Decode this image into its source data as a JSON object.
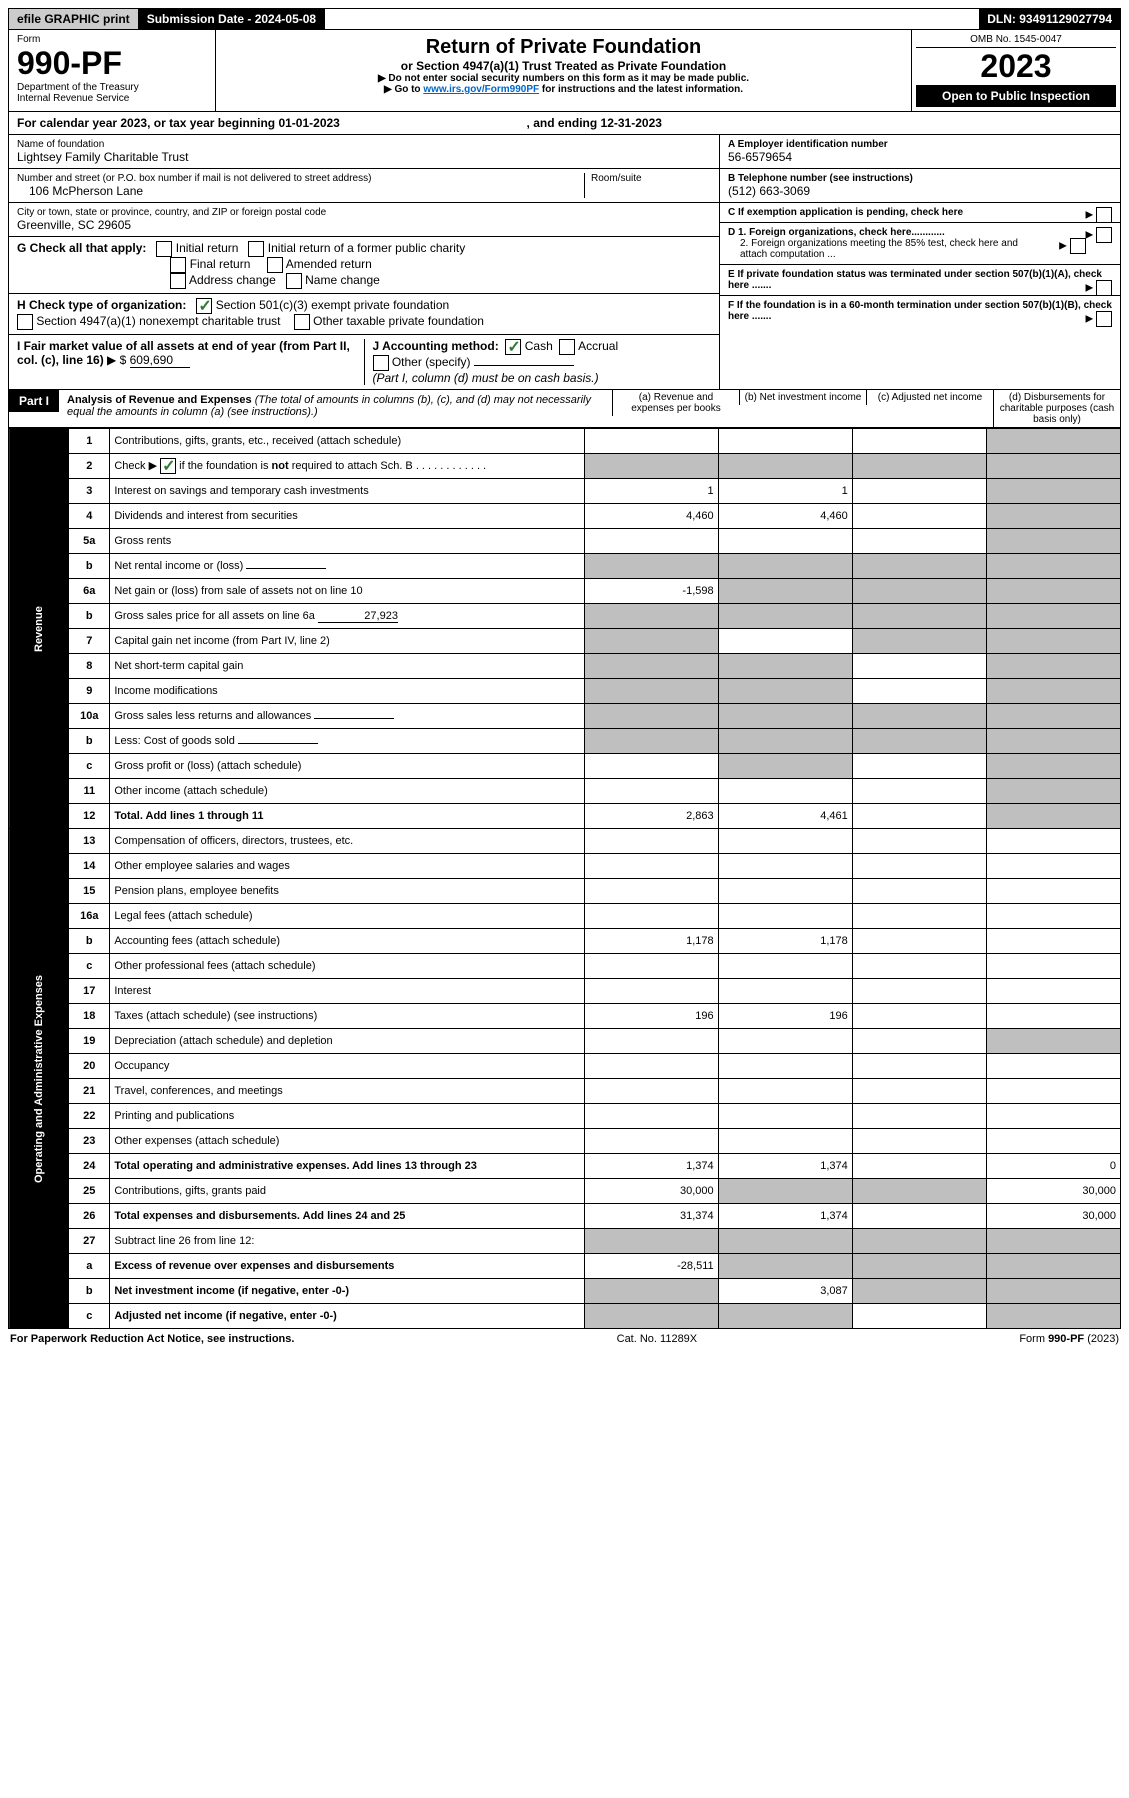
{
  "top": {
    "efile": "efile GRAPHIC print",
    "submission": "Submission Date - 2024-05-08",
    "dln": "DLN: 93491129027794"
  },
  "header": {
    "form_word": "Form",
    "form_no": "990-PF",
    "dept": "Department of the Treasury",
    "irs": "Internal Revenue Service",
    "title": "Return of Private Foundation",
    "subtitle": "or Section 4947(a)(1) Trust Treated as Private Foundation",
    "warn": "Do not enter social security numbers on this form as it may be made public.",
    "goto_pre": "Go to ",
    "goto_link": "www.irs.gov/Form990PF",
    "goto_post": " for instructions and the latest information.",
    "omb": "OMB No. 1545-0047",
    "year": "2023",
    "open": "Open to Public Inspection"
  },
  "calendar": {
    "text_pre": "For calendar year 2023, or tax year beginning ",
    "begin": "01-01-2023",
    "mid": " , and ending ",
    "end": "12-31-2023"
  },
  "entity": {
    "name_label": "Name of foundation",
    "name": "Lightsey Family Charitable Trust",
    "addr_label": "Number and street (or P.O. box number if mail is not delivered to street address)",
    "addr": "106 McPherson Lane",
    "room_label": "Room/suite",
    "city_label": "City or town, state or province, country, and ZIP or foreign postal code",
    "city": "Greenville, SC  29605"
  },
  "right": {
    "a_label": "A Employer identification number",
    "a_val": "56-6579654",
    "b_label": "B Telephone number (see instructions)",
    "b_val": "(512) 663-3069",
    "c_label": "C If exemption application is pending, check here",
    "d1": "D 1. Foreign organizations, check here............",
    "d2": "2. Foreign organizations meeting the 85% test, check here and attach computation ...",
    "e": "E  If private foundation status was terminated under section 507(b)(1)(A), check here .......",
    "f": "F  If the foundation is in a 60-month termination under section 507(b)(1)(B), check here ......."
  },
  "g": {
    "label": "G Check all that apply:",
    "initial": "Initial return",
    "initial_former": "Initial return of a former public charity",
    "final": "Final return",
    "amended": "Amended return",
    "address": "Address change",
    "name_change": "Name change"
  },
  "h": {
    "label": "H Check type of organization:",
    "501c3": "Section 501(c)(3) exempt private foundation",
    "4947": "Section 4947(a)(1) nonexempt charitable trust",
    "other_taxable": "Other taxable private foundation"
  },
  "i": {
    "label": "I Fair market value of all assets at end of year (from Part II, col. (c), line 16)",
    "val": "609,690"
  },
  "j": {
    "label": "J Accounting method:",
    "cash": "Cash",
    "accrual": "Accrual",
    "other": "Other (specify)",
    "note": "(Part I, column (d) must be on cash basis.)"
  },
  "part1": {
    "label": "Part I",
    "title": "Analysis of Revenue and Expenses",
    "note": "(The total of amounts in columns (b), (c), and (d) may not necessarily equal the amounts in column (a) (see instructions).)",
    "col_a": "(a)   Revenue and expenses per books",
    "col_b": "(b)   Net investment income",
    "col_c": "(c)   Adjusted net income",
    "col_d": "(d)   Disbursements for charitable purposes (cash basis only)"
  },
  "vlabels": {
    "revenue": "Revenue",
    "expenses": "Operating and Administrative Expenses"
  },
  "rows": [
    {
      "n": "1",
      "d": "Contributions, gifts, grants, etc., received (attach schedule)",
      "a": "",
      "b": "",
      "c": "",
      "dd": "",
      "shade": [
        "dd"
      ]
    },
    {
      "n": "2",
      "d": "Check ▶ ☑ if the foundation is not required to attach Sch. B",
      "a": "",
      "b": "",
      "c": "",
      "dd": "",
      "shade": [
        "a",
        "b",
        "c",
        "dd"
      ],
      "check": true
    },
    {
      "n": "3",
      "d": "Interest on savings and temporary cash investments",
      "a": "1",
      "b": "1",
      "c": "",
      "dd": "",
      "shade": [
        "dd"
      ]
    },
    {
      "n": "4",
      "d": "Dividends and interest from securities",
      "a": "4,460",
      "b": "4,460",
      "c": "",
      "dd": "",
      "shade": [
        "dd"
      ]
    },
    {
      "n": "5a",
      "d": "Gross rents",
      "a": "",
      "b": "",
      "c": "",
      "dd": "",
      "shade": [
        "dd"
      ]
    },
    {
      "n": "b",
      "d": "Net rental income or (loss)",
      "a": "",
      "b": "",
      "c": "",
      "dd": "",
      "shade": [
        "a",
        "b",
        "c",
        "dd"
      ],
      "inline": true
    },
    {
      "n": "6a",
      "d": "Net gain or (loss) from sale of assets not on line 10",
      "a": "-1,598",
      "b": "",
      "c": "",
      "dd": "",
      "shade": [
        "b",
        "c",
        "dd"
      ]
    },
    {
      "n": "b",
      "d": "Gross sales price for all assets on line 6a",
      "a": "",
      "b": "",
      "c": "",
      "dd": "",
      "shade": [
        "a",
        "b",
        "c",
        "dd"
      ],
      "inline": true,
      "inline_val": "27,923"
    },
    {
      "n": "7",
      "d": "Capital gain net income (from Part IV, line 2)",
      "a": "",
      "b": "",
      "c": "",
      "dd": "",
      "shade": [
        "a",
        "c",
        "dd"
      ]
    },
    {
      "n": "8",
      "d": "Net short-term capital gain",
      "a": "",
      "b": "",
      "c": "",
      "dd": "",
      "shade": [
        "a",
        "b",
        "dd"
      ]
    },
    {
      "n": "9",
      "d": "Income modifications",
      "a": "",
      "b": "",
      "c": "",
      "dd": "",
      "shade": [
        "a",
        "b",
        "dd"
      ]
    },
    {
      "n": "10a",
      "d": "Gross sales less returns and allowances",
      "a": "",
      "b": "",
      "c": "",
      "dd": "",
      "shade": [
        "a",
        "b",
        "c",
        "dd"
      ],
      "inline": true
    },
    {
      "n": "b",
      "d": "Less: Cost of goods sold",
      "a": "",
      "b": "",
      "c": "",
      "dd": "",
      "shade": [
        "a",
        "b",
        "c",
        "dd"
      ],
      "inline": true
    },
    {
      "n": "c",
      "d": "Gross profit or (loss) (attach schedule)",
      "a": "",
      "b": "",
      "c": "",
      "dd": "",
      "shade": [
        "b",
        "dd"
      ]
    },
    {
      "n": "11",
      "d": "Other income (attach schedule)",
      "a": "",
      "b": "",
      "c": "",
      "dd": "",
      "shade": [
        "dd"
      ]
    },
    {
      "n": "12",
      "d": "Total. Add lines 1 through 11",
      "a": "2,863",
      "b": "4,461",
      "c": "",
      "dd": "",
      "shade": [
        "dd"
      ],
      "bold": true
    },
    {
      "n": "13",
      "d": "Compensation of officers, directors, trustees, etc.",
      "a": "",
      "b": "",
      "c": "",
      "dd": ""
    },
    {
      "n": "14",
      "d": "Other employee salaries and wages",
      "a": "",
      "b": "",
      "c": "",
      "dd": ""
    },
    {
      "n": "15",
      "d": "Pension plans, employee benefits",
      "a": "",
      "b": "",
      "c": "",
      "dd": ""
    },
    {
      "n": "16a",
      "d": "Legal fees (attach schedule)",
      "a": "",
      "b": "",
      "c": "",
      "dd": ""
    },
    {
      "n": "b",
      "d": "Accounting fees (attach schedule)",
      "a": "1,178",
      "b": "1,178",
      "c": "",
      "dd": ""
    },
    {
      "n": "c",
      "d": "Other professional fees (attach schedule)",
      "a": "",
      "b": "",
      "c": "",
      "dd": ""
    },
    {
      "n": "17",
      "d": "Interest",
      "a": "",
      "b": "",
      "c": "",
      "dd": ""
    },
    {
      "n": "18",
      "d": "Taxes (attach schedule) (see instructions)",
      "a": "196",
      "b": "196",
      "c": "",
      "dd": ""
    },
    {
      "n": "19",
      "d": "Depreciation (attach schedule) and depletion",
      "a": "",
      "b": "",
      "c": "",
      "dd": "",
      "shade": [
        "dd"
      ]
    },
    {
      "n": "20",
      "d": "Occupancy",
      "a": "",
      "b": "",
      "c": "",
      "dd": ""
    },
    {
      "n": "21",
      "d": "Travel, conferences, and meetings",
      "a": "",
      "b": "",
      "c": "",
      "dd": ""
    },
    {
      "n": "22",
      "d": "Printing and publications",
      "a": "",
      "b": "",
      "c": "",
      "dd": ""
    },
    {
      "n": "23",
      "d": "Other expenses (attach schedule)",
      "a": "",
      "b": "",
      "c": "",
      "dd": ""
    },
    {
      "n": "24",
      "d": "Total operating and administrative expenses. Add lines 13 through 23",
      "a": "1,374",
      "b": "1,374",
      "c": "",
      "dd": "0",
      "bold": true
    },
    {
      "n": "25",
      "d": "Contributions, gifts, grants paid",
      "a": "30,000",
      "b": "",
      "c": "",
      "dd": "30,000",
      "shade": [
        "b",
        "c"
      ]
    },
    {
      "n": "26",
      "d": "Total expenses and disbursements. Add lines 24 and 25",
      "a": "31,374",
      "b": "1,374",
      "c": "",
      "dd": "30,000",
      "bold": true
    },
    {
      "n": "27",
      "d": "Subtract line 26 from line 12:",
      "a": "",
      "b": "",
      "c": "",
      "dd": "",
      "shade": [
        "a",
        "b",
        "c",
        "dd"
      ]
    },
    {
      "n": "a",
      "d": "Excess of revenue over expenses and disbursements",
      "a": "-28,511",
      "b": "",
      "c": "",
      "dd": "",
      "shade": [
        "b",
        "c",
        "dd"
      ],
      "bold": true
    },
    {
      "n": "b",
      "d": "Net investment income (if negative, enter -0-)",
      "a": "",
      "b": "3,087",
      "c": "",
      "dd": "",
      "shade": [
        "a",
        "c",
        "dd"
      ],
      "bold": true
    },
    {
      "n": "c",
      "d": "Adjusted net income (if negative, enter -0-)",
      "a": "",
      "b": "",
      "c": "",
      "dd": "",
      "shade": [
        "a",
        "b",
        "dd"
      ],
      "bold": true
    }
  ],
  "footer": {
    "left": "For Paperwork Reduction Act Notice, see instructions.",
    "mid": "Cat. No. 11289X",
    "right": "Form 990-PF (2023)"
  }
}
